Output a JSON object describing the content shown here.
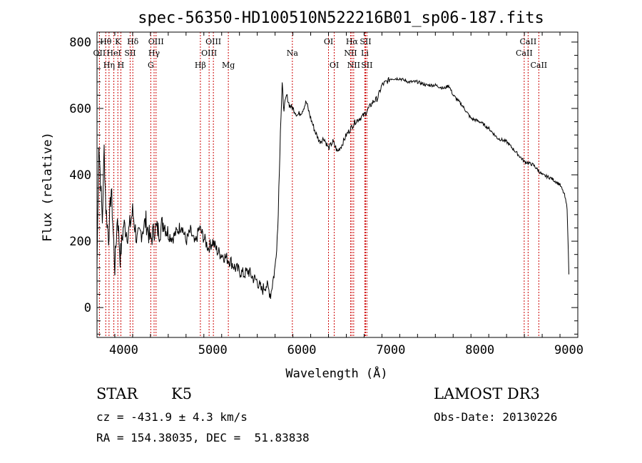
{
  "chart_data": {
    "type": "line",
    "title": "spec-56350-HD100510N522216B01_sp06-187.fits",
    "xlabel": "Wavelength (Å)",
    "ylabel": "Flux (relative)",
    "xlim": [
      3700,
      9100
    ],
    "ylim": [
      -90,
      830
    ],
    "xticks": [
      4000,
      5000,
      6000,
      7000,
      8000,
      9000
    ],
    "yticks": [
      0,
      200,
      400,
      600,
      800
    ],
    "grid": false,
    "line_color": "#000000",
    "marker_color": "#cc0000",
    "series": [
      {
        "x": [
          3700,
          3720,
          3740,
          3760,
          3780,
          3800,
          3830,
          3860,
          3900,
          3930,
          3960,
          4000,
          4050,
          4100,
          4150,
          4200,
          4250,
          4300,
          4350,
          4400,
          4450,
          4500,
          4550,
          4600,
          4650,
          4700,
          4750,
          4800,
          4850,
          4900,
          4950,
          5000,
          5050,
          5100,
          5150,
          5200,
          5250,
          5300,
          5350,
          5400,
          5450,
          5500,
          5550,
          5600,
          5650,
          5700,
          5730,
          5760,
          5780,
          5800,
          5830,
          5860,
          5900,
          5950,
          6000,
          6050,
          6100,
          6150,
          6200,
          6250,
          6300,
          6350,
          6400,
          6450,
          6500,
          6550,
          6600,
          6650,
          6700,
          6750,
          6800,
          6850,
          6900,
          6950,
          7000,
          7100,
          7200,
          7300,
          7400,
          7500,
          7600,
          7650,
          7700,
          7800,
          7900,
          8000,
          8100,
          8200,
          8300,
          8400,
          8500,
          8600,
          8700,
          8800,
          8900,
          8950,
          8980,
          9000
        ],
        "y": [
          120,
          500,
          380,
          260,
          480,
          300,
          210,
          360,
          120,
          280,
          150,
          250,
          220,
          290,
          200,
          230,
          260,
          200,
          240,
          230,
          260,
          220,
          210,
          230,
          250,
          200,
          230,
          190,
          240,
          210,
          180,
          200,
          170,
          160,
          150,
          140,
          120,
          110,
          100,
          110,
          90,
          80,
          50,
          70,
          40,
          120,
          240,
          540,
          660,
          600,
          640,
          610,
          600,
          580,
          590,
          620,
          570,
          530,
          500,
          510,
          480,
          500,
          470,
          490,
          520,
          540,
          560,
          570,
          580,
          600,
          620,
          630,
          670,
          680,
          690,
          690,
          680,
          680,
          670,
          670,
          660,
          670,
          640,
          610,
          570,
          560,
          540,
          510,
          500,
          470,
          440,
          430,
          400,
          390,
          370,
          340,
          300,
          100
        ]
      }
    ],
    "lines": [
      {
        "label": "OII",
        "x": 3727,
        "row": 2
      },
      {
        "label": "Hθ",
        "x": 3798,
        "row": 1
      },
      {
        "label": "Hη",
        "x": 3835,
        "row": 3
      },
      {
        "label": "HeI",
        "x": 3889,
        "row": 2
      },
      {
        "label": "K",
        "x": 3934,
        "row": 1
      },
      {
        "label": "H",
        "x": 3968,
        "row": 3
      },
      {
        "label": "SII",
        "x": 4072,
        "row": 2
      },
      {
        "label": "Hδ",
        "x": 4102,
        "row": 1
      },
      {
        "label": "G",
        "x": 4304,
        "row": 3
      },
      {
        "label": "Hγ",
        "x": 4341,
        "row": 2
      },
      {
        "label": "OIII",
        "x": 4363,
        "row": 1
      },
      {
        "label": "Hβ",
        "x": 4861,
        "row": 3
      },
      {
        "label": "OIII",
        "x": 4959,
        "row": 2
      },
      {
        "label": "OIII",
        "x": 5007,
        "row": 1
      },
      {
        "label": "Mg",
        "x": 5175,
        "row": 3
      },
      {
        "label": "Na",
        "x": 5894,
        "row": 2
      },
      {
        "label": "OI",
        "x": 6300,
        "row": 1
      },
      {
        "label": "OI",
        "x": 6364,
        "row": 3
      },
      {
        "label": "NII",
        "x": 6548,
        "row": 2
      },
      {
        "label": "Hα",
        "x": 6563,
        "row": 1
      },
      {
        "label": "NII",
        "x": 6583,
        "row": 3
      },
      {
        "label": "Li",
        "x": 6708,
        "row": 2
      },
      {
        "label": "SII",
        "x": 6716,
        "row": 1
      },
      {
        "label": "SII",
        "x": 6731,
        "row": 3
      },
      {
        "label": "CaII",
        "x": 8498,
        "row": 2
      },
      {
        "label": "CaII",
        "x": 8542,
        "row": 1
      },
      {
        "label": "CaII",
        "x": 8662,
        "row": 3
      }
    ]
  },
  "info": {
    "class": "STAR",
    "subclass": "K5",
    "survey": "LAMOST DR3",
    "cz": "cz = -431.9 ± 4.3 km/s",
    "obs_date": "Obs-Date: 20130226",
    "coords": "RA = 154.38035, DEC =  51.83838"
  }
}
